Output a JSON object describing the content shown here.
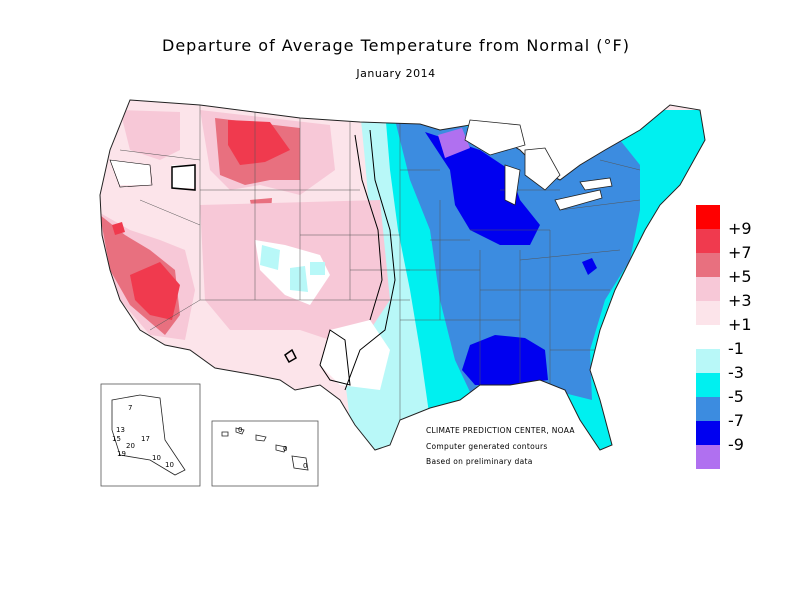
{
  "header": {
    "title": "Departure of Average Temperature from Normal (°F)",
    "subtitle": "January 2014"
  },
  "credits": [
    "CLIMATE PREDICTION CENTER, NOAA",
    "Computer generated contours",
    "Based on preliminary data"
  ],
  "legend": {
    "colors": [
      "#ff0000",
      "#f03a4e",
      "#e8707f",
      "#f7c8d7",
      "#fce4ea",
      "#ffffff",
      "#b8f8f8",
      "#00f0f0",
      "#3c8ce0",
      "#0000f0",
      "#b070f0"
    ],
    "labels": [
      "+9",
      "+7",
      "+5",
      "+3",
      "+1",
      "-1",
      "-3",
      "-5",
      "-7",
      "-9"
    ]
  },
  "alaska_values": [
    "7",
    "13",
    "15",
    "17",
    "20",
    "19",
    "10",
    "10"
  ],
  "hawaii_values": [
    "0",
    "0",
    "0"
  ]
}
